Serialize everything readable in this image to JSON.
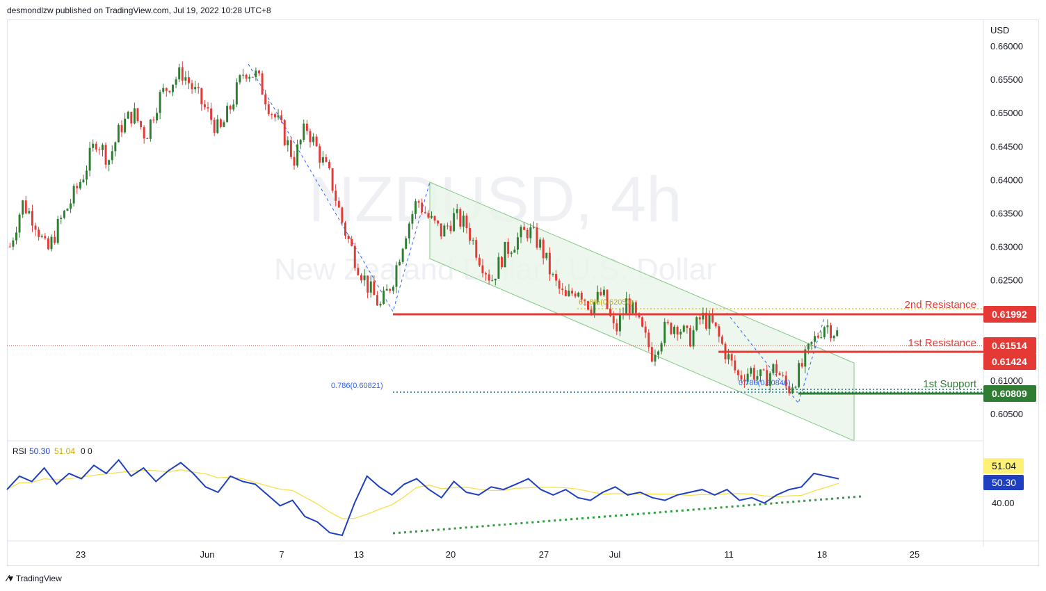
{
  "header": {
    "publish_text": "desmondlzw published on TradingView.com, Jul 19, 2022 10:28 UTC+8"
  },
  "footer": {
    "brand": "TradingView",
    "logo_icon": "tradingview-logo-icon"
  },
  "watermark": {
    "symbol": "NZDUSD, 4h",
    "description": "New Zealand Dollar / U.S. Dollar"
  },
  "chart_data": {
    "type": "candlestick",
    "symbol": "NZDUSD",
    "timeframe": "4h",
    "currency": "USD",
    "ylim": [
      0.6,
      0.663
    ],
    "y_ticks": [
      "0.66000",
      "0.65500",
      "0.65000",
      "0.64500",
      "0.64000",
      "0.63500",
      "0.63000",
      "0.62500",
      "0.62000",
      "0.61500",
      "0.61000",
      "0.60500"
    ],
    "x_ticks": [
      "23",
      "Jun",
      "7",
      "13",
      "20",
      "27",
      "Jul",
      "11",
      "18",
      "25"
    ],
    "colors": {
      "up": "#26a69a",
      "down": "#ef5350",
      "up_candle": "#2e7d32",
      "down_candle": "#e53935",
      "resistance": "#e53935",
      "support": "#2e7d32",
      "channel": "#a5d6a7",
      "fib": "#2962ff",
      "rsi": "#1e3fbf",
      "rsi_ma": "#f5e04a"
    },
    "close_path": [
      0.63,
      0.6365,
      0.634,
      0.629,
      0.6335,
      0.637,
      0.641,
      0.646,
      0.643,
      0.648,
      0.65,
      0.6465,
      0.652,
      0.6545,
      0.656,
      0.653,
      0.65,
      0.647,
      0.6515,
      0.6565,
      0.6555,
      0.651,
      0.6475,
      0.643,
      0.648,
      0.644,
      0.64,
      0.633,
      0.628,
      0.624,
      0.621,
      0.625,
      0.632,
      0.637,
      0.634,
      0.632,
      0.6345,
      0.633,
      0.6285,
      0.625,
      0.629,
      0.631,
      0.6325,
      0.63,
      0.625,
      0.622,
      0.624,
      0.621,
      0.623,
      0.617,
      0.622,
      0.618,
      0.614,
      0.6175,
      0.6185,
      0.616,
      0.6195,
      0.618,
      0.614,
      0.6105,
      0.6115,
      0.61,
      0.612,
      0.6085,
      0.6115,
      0.6155,
      0.6185,
      0.617
    ],
    "horizontal_levels": [
      {
        "label": "2nd Resistance",
        "value": "0.61992",
        "color": "#e53935"
      },
      {
        "label": "1st Resistance",
        "value": "0.61424",
        "color": "#e53935"
      },
      {
        "label": "1st Support",
        "value": "0.60809",
        "color": "#2e7d32"
      }
    ],
    "last_price": {
      "value": "0.61514",
      "color": "#e53935"
    },
    "fib_labels": [
      {
        "text": "0.786(0.60821)"
      },
      {
        "text": "0.786(0.60846)"
      },
      {
        "text": "61.8%(0.62050)"
      }
    ],
    "rsi": {
      "label": "RSI",
      "value": "50.30",
      "ma_value": "51.04",
      "extra": "0  0",
      "ylim": [
        30,
        62
      ],
      "ticks": [
        "40.00"
      ],
      "values": [
        47,
        52,
        50,
        55,
        49,
        53,
        51,
        56,
        53,
        58,
        52,
        55,
        50,
        54,
        57,
        53,
        48,
        46,
        52,
        50,
        49,
        45,
        41,
        43,
        37,
        35,
        31,
        30,
        42,
        52,
        48,
        45,
        49,
        51,
        47,
        44,
        50,
        46,
        45,
        48,
        47,
        49,
        51,
        47,
        45,
        47,
        44,
        43,
        46,
        48,
        45,
        46,
        44,
        43,
        45,
        46,
        47,
        45,
        47,
        43,
        44,
        42,
        45,
        47,
        48,
        53,
        52,
        51
      ]
    }
  }
}
